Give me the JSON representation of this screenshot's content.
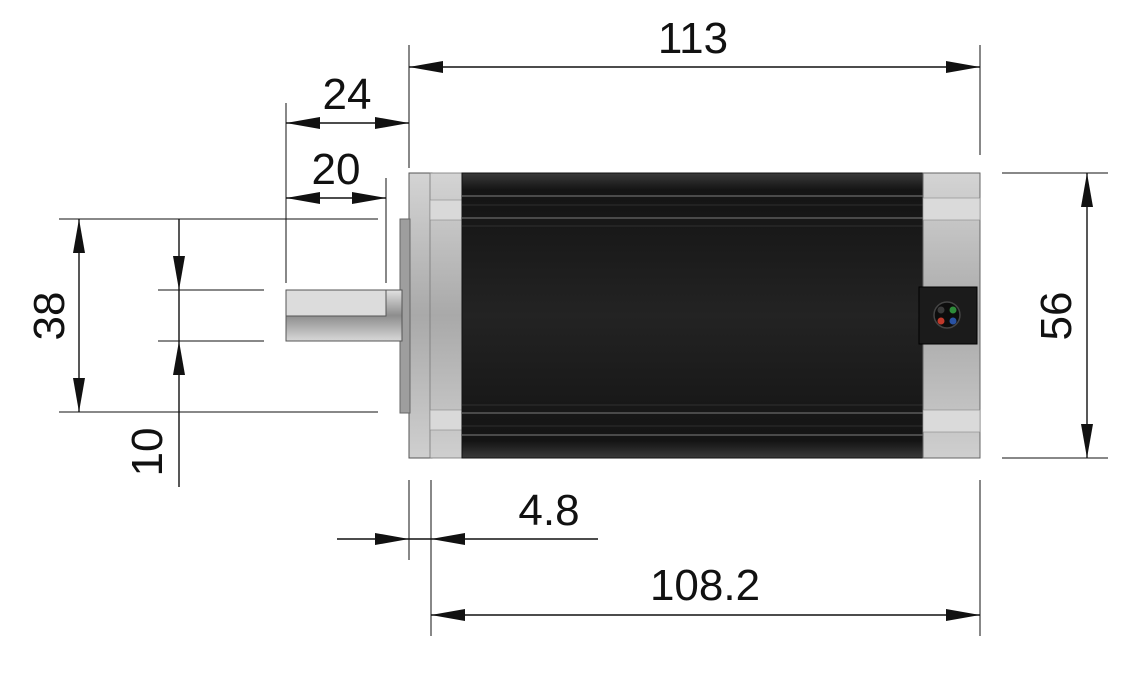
{
  "dimensions": {
    "overall_length": "113",
    "shaft_length": "24",
    "flat_length": "20",
    "boss_diameter": "38",
    "shaft_diameter": "10",
    "flange_thickness": "4.8",
    "body_length": "108.2",
    "frame_size": "56"
  },
  "colors": {
    "body": "#1c1c1c",
    "aluminum": "#b9b9b9",
    "line": "#111111",
    "connector_pins": [
      "#3a3a3a",
      "#2e8b3a",
      "#c0392b",
      "#2952a3"
    ]
  }
}
